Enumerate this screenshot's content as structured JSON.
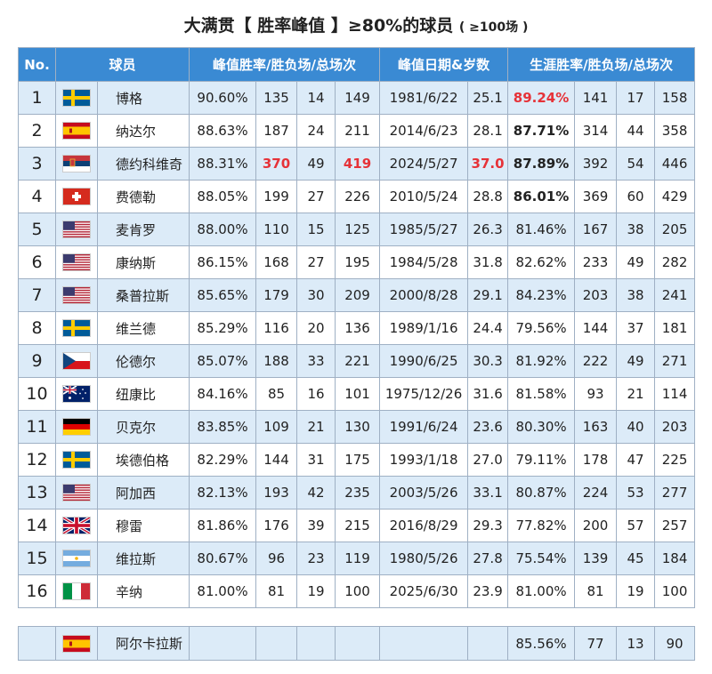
{
  "title": {
    "main": "大满贯【 胜率峰值 】≥80%的球员",
    "sub": "( ≥100场 )"
  },
  "headers": {
    "no": "No.",
    "player": "球员",
    "peak": "峰值胜率/胜负场/总场次",
    "peak_date": "峰值日期&岁数",
    "career": "生涯胜率/胜负场/总场次"
  },
  "colors": {
    "header_bg": "#3a8ad3",
    "row_alt": "#dcebf8",
    "highlight": "#e63238"
  },
  "rows": [
    {
      "no": "1",
      "flag": "sweden-flag",
      "name": "博格",
      "peak_pct": "90.60%",
      "peak_w": "135",
      "peak_l": "14",
      "peak_t": "149",
      "date": "1981/6/22",
      "age": "25.1",
      "career_pct": "89.24%",
      "car_w": "141",
      "car_l": "17",
      "car_t": "158"
    },
    {
      "no": "2",
      "flag": "spain-flag",
      "name": "纳达尔",
      "peak_pct": "88.63%",
      "peak_w": "187",
      "peak_l": "24",
      "peak_t": "211",
      "date": "2014/6/23",
      "age": "28.1",
      "career_pct": "87.71%",
      "car_w": "314",
      "car_l": "44",
      "car_t": "358"
    },
    {
      "no": "3",
      "flag": "serbia-flag",
      "name": "德约科维奇",
      "peak_pct": "88.31%",
      "peak_w": "370",
      "peak_l": "49",
      "peak_t": "419",
      "date": "2024/5/27",
      "age": "37.0",
      "career_pct": "87.89%",
      "car_w": "392",
      "car_l": "54",
      "car_t": "446"
    },
    {
      "no": "4",
      "flag": "switzerland-flag",
      "name": "费德勒",
      "peak_pct": "88.05%",
      "peak_w": "199",
      "peak_l": "27",
      "peak_t": "226",
      "date": "2010/5/24",
      "age": "28.8",
      "career_pct": "86.01%",
      "car_w": "369",
      "car_l": "60",
      "car_t": "429"
    },
    {
      "no": "5",
      "flag": "usa-flag",
      "name": "麦肯罗",
      "peak_pct": "88.00%",
      "peak_w": "110",
      "peak_l": "15",
      "peak_t": "125",
      "date": "1985/5/27",
      "age": "26.3",
      "career_pct": "81.46%",
      "car_w": "167",
      "car_l": "38",
      "car_t": "205"
    },
    {
      "no": "6",
      "flag": "usa-flag",
      "name": "康纳斯",
      "peak_pct": "86.15%",
      "peak_w": "168",
      "peak_l": "27",
      "peak_t": "195",
      "date": "1984/5/28",
      "age": "31.8",
      "career_pct": "82.62%",
      "car_w": "233",
      "car_l": "49",
      "car_t": "282"
    },
    {
      "no": "7",
      "flag": "usa-flag",
      "name": "桑普拉斯",
      "peak_pct": "85.65%",
      "peak_w": "179",
      "peak_l": "30",
      "peak_t": "209",
      "date": "2000/8/28",
      "age": "29.1",
      "career_pct": "84.23%",
      "car_w": "203",
      "car_l": "38",
      "car_t": "241"
    },
    {
      "no": "8",
      "flag": "sweden-flag",
      "name": "维兰德",
      "peak_pct": "85.29%",
      "peak_w": "116",
      "peak_l": "20",
      "peak_t": "136",
      "date": "1989/1/16",
      "age": "24.4",
      "career_pct": "79.56%",
      "car_w": "144",
      "car_l": "37",
      "car_t": "181"
    },
    {
      "no": "9",
      "flag": "czech-flag",
      "name": "伦德尔",
      "peak_pct": "85.07%",
      "peak_w": "188",
      "peak_l": "33",
      "peak_t": "221",
      "date": "1990/6/25",
      "age": "30.3",
      "career_pct": "81.92%",
      "car_w": "222",
      "car_l": "49",
      "car_t": "271"
    },
    {
      "no": "10",
      "flag": "australia-flag",
      "name": "纽康比",
      "peak_pct": "84.16%",
      "peak_w": "85",
      "peak_l": "16",
      "peak_t": "101",
      "date": "1975/12/26",
      "age": "31.6",
      "career_pct": "81.58%",
      "car_w": "93",
      "car_l": "21",
      "car_t": "114"
    },
    {
      "no": "11",
      "flag": "germany-flag",
      "name": "贝克尔",
      "peak_pct": "83.85%",
      "peak_w": "109",
      "peak_l": "21",
      "peak_t": "130",
      "date": "1991/6/24",
      "age": "23.6",
      "career_pct": "80.30%",
      "car_w": "163",
      "car_l": "40",
      "car_t": "203"
    },
    {
      "no": "12",
      "flag": "sweden-flag",
      "name": "埃德伯格",
      "peak_pct": "82.29%",
      "peak_w": "144",
      "peak_l": "31",
      "peak_t": "175",
      "date": "1993/1/18",
      "age": "27.0",
      "career_pct": "79.11%",
      "car_w": "178",
      "car_l": "47",
      "car_t": "225"
    },
    {
      "no": "13",
      "flag": "usa-flag",
      "name": "阿加西",
      "peak_pct": "82.13%",
      "peak_w": "193",
      "peak_l": "42",
      "peak_t": "235",
      "date": "2003/5/26",
      "age": "33.1",
      "career_pct": "80.87%",
      "car_w": "224",
      "car_l": "53",
      "car_t": "277"
    },
    {
      "no": "14",
      "flag": "uk-flag",
      "name": "穆雷",
      "peak_pct": "81.86%",
      "peak_w": "176",
      "peak_l": "39",
      "peak_t": "215",
      "date": "2016/8/29",
      "age": "29.3",
      "career_pct": "77.82%",
      "car_w": "200",
      "car_l": "57",
      "car_t": "257"
    },
    {
      "no": "15",
      "flag": "argentina-flag",
      "name": "维拉斯",
      "peak_pct": "80.67%",
      "peak_w": "96",
      "peak_l": "23",
      "peak_t": "119",
      "date": "1980/5/26",
      "age": "27.8",
      "career_pct": "75.54%",
      "car_w": "139",
      "car_l": "45",
      "car_t": "184"
    },
    {
      "no": "16",
      "flag": "italy-flag",
      "name": "辛纳",
      "peak_pct": "81.00%",
      "peak_w": "81",
      "peak_l": "19",
      "peak_t": "100",
      "date": "2025/6/30",
      "age": "23.9",
      "career_pct": "81.00%",
      "car_w": "81",
      "car_l": "19",
      "car_t": "100"
    }
  ],
  "extra": {
    "flag": "spain-flag",
    "name": "阿尔卡拉斯",
    "career_pct": "85.56%",
    "car_w": "77",
    "car_l": "13",
    "car_t": "90"
  }
}
